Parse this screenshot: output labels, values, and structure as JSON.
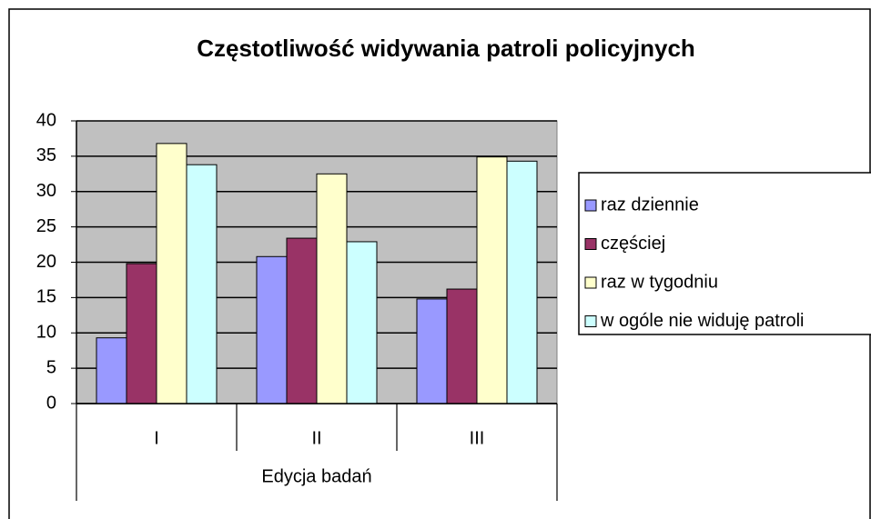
{
  "chart_data": {
    "type": "bar",
    "title": "Częstotliwość widywania patroli policyjnych",
    "x_label": "Edycja badań",
    "categories": [
      "I",
      "II",
      "III"
    ],
    "series": [
      {
        "name": "raz dziennie",
        "color": "#9999ff",
        "values": [
          9.3,
          20.8,
          14.8
        ]
      },
      {
        "name": "częściej",
        "color": "#993366",
        "values": [
          19.8,
          23.4,
          16.2
        ]
      },
      {
        "name": "raz w tygodniu",
        "color": "#ffffcc",
        "values": [
          36.8,
          32.5,
          34.9
        ]
      },
      {
        "name": "w ogóle nie widuję patroli",
        "color": "#ccffff",
        "values": [
          33.8,
          22.9,
          34.3
        ]
      }
    ],
    "ylim": [
      0,
      40
    ],
    "yticks": [
      0,
      5,
      10,
      15,
      20,
      25,
      30,
      35,
      40
    ],
    "grid": true,
    "legend": "right"
  }
}
